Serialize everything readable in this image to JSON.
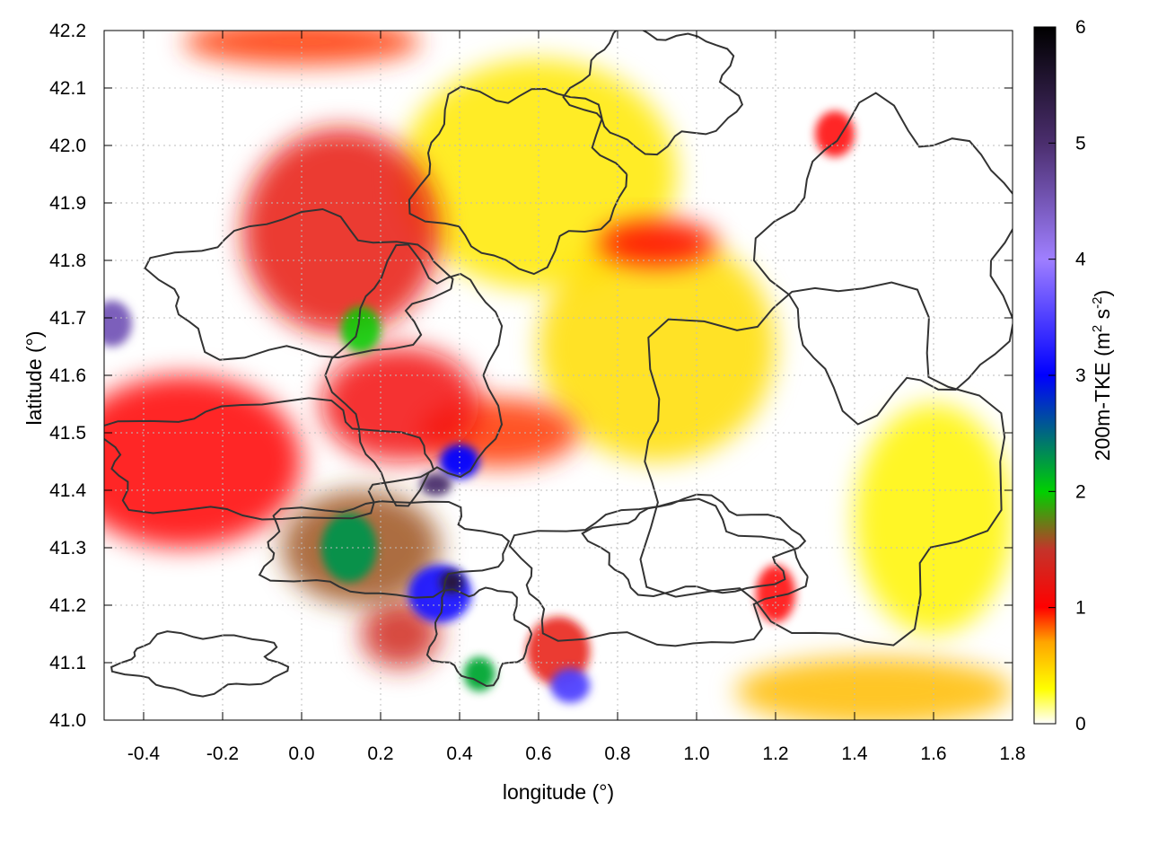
{
  "chart_data": {
    "type": "heatmap",
    "xlabel": "longitude (°)",
    "ylabel": "latitude (°)",
    "colorbar_label_main": "200m-TKE (m",
    "colorbar_label_sup1": "2",
    "colorbar_label_mid": " s",
    "colorbar_label_sup2": "-2",
    "colorbar_label_end": ")",
    "xlim": [
      -0.5,
      1.8
    ],
    "ylim": [
      41.0,
      42.2
    ],
    "x_ticks": [
      -0.4,
      -0.2,
      0.0,
      0.2,
      0.4,
      0.6,
      0.8,
      1.0,
      1.2,
      1.4,
      1.6,
      1.8
    ],
    "x_tick_labels": [
      "-0.4",
      "-0.2",
      "0.0",
      "0.2",
      "0.4",
      "0.6",
      "0.8",
      "1.0",
      "1.2",
      "1.4",
      "1.6",
      "1.8"
    ],
    "y_ticks": [
      41.0,
      41.1,
      41.2,
      41.3,
      41.4,
      41.5,
      41.6,
      41.7,
      41.8,
      41.9,
      42.0,
      42.1,
      42.2
    ],
    "y_tick_labels": [
      "41.0",
      "41.1",
      "41.2",
      "41.3",
      "41.4",
      "41.5",
      "41.6",
      "41.7",
      "41.8",
      "41.9",
      "42.0",
      "42.1",
      "42.2"
    ],
    "colorbar_range": [
      0,
      6
    ],
    "colorbar_ticks": [
      0,
      1,
      2,
      3,
      4,
      5,
      6
    ],
    "colorbar_tick_labels": [
      "0",
      "1",
      "2",
      "3",
      "4",
      "5",
      "6"
    ],
    "colorbar_stops": [
      {
        "v": 0.0,
        "color": "#ffffff"
      },
      {
        "v": 0.3,
        "color": "#ffff00"
      },
      {
        "v": 0.7,
        "color": "#ffa500"
      },
      {
        "v": 1.0,
        "color": "#ff0000"
      },
      {
        "v": 1.5,
        "color": "#c4342a"
      },
      {
        "v": 2.0,
        "color": "#00d000"
      },
      {
        "v": 3.0,
        "color": "#0000ff"
      },
      {
        "v": 4.0,
        "color": "#9f7fff"
      },
      {
        "v": 5.0,
        "color": "#4b2e6e"
      },
      {
        "v": 6.0,
        "color": "#000000"
      }
    ],
    "grid": true,
    "contours_present": true,
    "tke_hotspots": [
      {
        "lon": 0.1,
        "lat": 41.85,
        "tke": 1.2,
        "rlon": 0.25,
        "rlat": 0.18
      },
      {
        "lon": -0.3,
        "lat": 41.45,
        "tke": 1.0,
        "rlon": 0.3,
        "rlat": 0.15
      },
      {
        "lon": 0.15,
        "lat": 41.3,
        "tke": 1.6,
        "rlon": 0.2,
        "rlat": 0.1
      },
      {
        "lon": 0.25,
        "lat": 41.55,
        "tke": 1.1,
        "rlon": 0.2,
        "rlat": 0.1
      },
      {
        "lon": 0.12,
        "lat": 41.3,
        "tke": 2.3,
        "rlon": 0.07,
        "rlat": 0.06
      },
      {
        "lon": 0.35,
        "lat": 41.22,
        "tke": 3.2,
        "rlon": 0.08,
        "rlat": 0.05
      },
      {
        "lon": 0.38,
        "lat": 41.24,
        "tke": 5.5,
        "rlon": 0.03,
        "rlat": 0.02
      },
      {
        "lon": 0.34,
        "lat": 41.41,
        "tke": 5.0,
        "rlon": 0.04,
        "rlat": 0.02
      },
      {
        "lon": 0.4,
        "lat": 41.45,
        "tke": 3.0,
        "rlon": 0.05,
        "rlat": 0.03
      },
      {
        "lon": -0.48,
        "lat": 41.69,
        "tke": 4.5,
        "rlon": 0.05,
        "rlat": 0.04
      },
      {
        "lon": 0.15,
        "lat": 41.68,
        "tke": 2.0,
        "rlon": 0.05,
        "rlat": 0.04
      },
      {
        "lon": 0.68,
        "lat": 41.06,
        "tke": 3.5,
        "rlon": 0.05,
        "rlat": 0.03
      },
      {
        "lon": 0.45,
        "lat": 41.08,
        "tke": 2.2,
        "rlon": 0.04,
        "rlat": 0.03
      },
      {
        "lon": 0.65,
        "lat": 41.12,
        "tke": 1.2,
        "rlon": 0.08,
        "rlat": 0.06
      },
      {
        "lon": 0.25,
        "lat": 41.15,
        "tke": 1.4,
        "rlon": 0.1,
        "rlat": 0.06
      },
      {
        "lon": 0.9,
        "lat": 41.83,
        "tke": 1.0,
        "rlon": 0.15,
        "rlat": 0.04
      },
      {
        "lon": 0.5,
        "lat": 41.5,
        "tke": 0.9,
        "rlon": 0.2,
        "rlat": 0.06
      },
      {
        "lon": 1.35,
        "lat": 42.02,
        "tke": 1.0,
        "rlon": 0.05,
        "rlat": 0.04
      },
      {
        "lon": 1.2,
        "lat": 41.22,
        "tke": 1.0,
        "rlon": 0.05,
        "rlat": 0.05
      },
      {
        "lon": 0.0,
        "lat": 42.18,
        "tke": 0.9,
        "rlon": 0.3,
        "rlat": 0.04
      },
      {
        "lon": 1.45,
        "lat": 41.05,
        "tke": 0.6,
        "rlon": 0.35,
        "rlat": 0.06
      },
      {
        "lon": 0.9,
        "lat": 41.65,
        "tke": 0.45,
        "rlon": 0.3,
        "rlat": 0.2
      },
      {
        "lon": 0.6,
        "lat": 41.95,
        "tke": 0.4,
        "rlon": 0.35,
        "rlat": 0.2
      },
      {
        "lon": 1.6,
        "lat": 41.35,
        "tke": 0.35,
        "rlon": 0.2,
        "rlat": 0.2
      }
    ]
  }
}
